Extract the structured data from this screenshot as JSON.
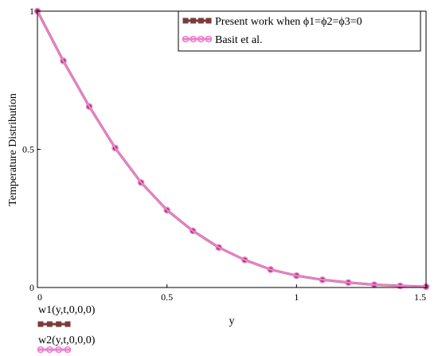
{
  "chart_data": {
    "type": "line",
    "xlabel": "y",
    "ylabel": "Temperature Distribution",
    "xlim": [
      0,
      1.5
    ],
    "ylim": [
      0,
      1
    ],
    "x_ticks": [
      "0",
      "0.5",
      "1",
      "1.5"
    ],
    "y_ticks": [
      "0",
      "0.5",
      "1"
    ],
    "grid": false,
    "legend_position": "top-right",
    "series": [
      {
        "name": "Present work when ϕ1=ϕ2=ϕ3=0",
        "color": "#7a3b3b",
        "marker": "square",
        "x": [
          0,
          0.1,
          0.2,
          0.3,
          0.4,
          0.5,
          0.6,
          0.7,
          0.8,
          0.9,
          1.0,
          1.1,
          1.2,
          1.3,
          1.4,
          1.5
        ],
        "values": [
          1.0,
          0.82,
          0.655,
          0.505,
          0.38,
          0.28,
          0.205,
          0.145,
          0.1,
          0.065,
          0.043,
          0.028,
          0.018,
          0.01,
          0.006,
          0.003
        ]
      },
      {
        "name": "Basit et al.",
        "color": "#ee7fcf",
        "marker": "circle",
        "x": [
          0,
          0.1,
          0.2,
          0.3,
          0.4,
          0.5,
          0.6,
          0.7,
          0.8,
          0.9,
          1.0,
          1.1,
          1.2,
          1.3,
          1.4,
          1.5
        ],
        "values": [
          1.0,
          0.82,
          0.655,
          0.505,
          0.38,
          0.28,
          0.205,
          0.145,
          0.1,
          0.065,
          0.043,
          0.028,
          0.018,
          0.01,
          0.006,
          0.003
        ]
      }
    ],
    "trace_labels": [
      "w1(y,t,0,0,0)",
      "w2(y,t,0,0,0)"
    ]
  }
}
